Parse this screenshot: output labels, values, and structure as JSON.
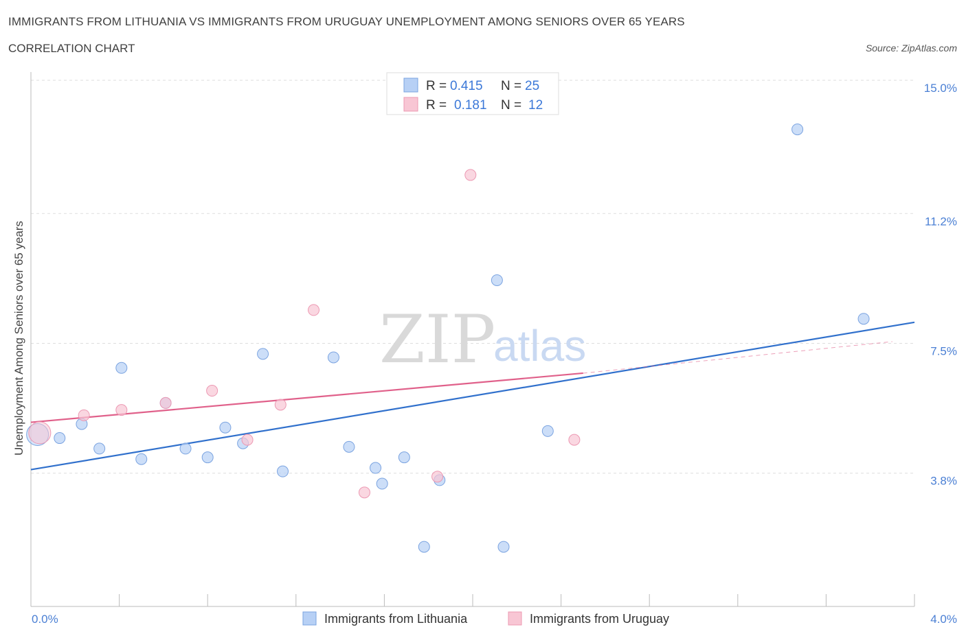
{
  "header": {
    "title": "IMMIGRANTS FROM LITHUANIA VS IMMIGRANTS FROM URUGUAY UNEMPLOYMENT AMONG SENIORS OVER 65 YEARS",
    "subtitle": "CORRELATION CHART",
    "source": "Source: ZipAtlas.com"
  },
  "watermark": {
    "zip": "ZIP",
    "atlas": "atlas"
  },
  "legend": {
    "r_label": "R =",
    "n_label": "N =",
    "rows": [
      {
        "r": "0.415",
        "n": "25"
      },
      {
        "r": "0.181",
        "n": "12"
      }
    ]
  },
  "colors": {
    "lithuania_fill": "#b7d0f5",
    "lithuania_stroke": "#7aa3e0",
    "lithuania_line": "#3070cc",
    "uruguay_fill": "#f8c6d4",
    "uruguay_stroke": "#ec98b2",
    "uruguay_line": "#e0608a"
  },
  "chart_data": {
    "type": "scatter",
    "title": "IMMIGRANTS FROM LITHUANIA VS IMMIGRANTS FROM URUGUAY UNEMPLOYMENT AMONG SENIORS OVER 65 YEARS",
    "xlabel": "",
    "ylabel": "Unemployment Among Seniors over 65 years",
    "xlim": [
      0,
      4.0
    ],
    "ylim": [
      0,
      15.0
    ],
    "x_tick_labels": [
      "0.0%",
      "4.0%"
    ],
    "y_ticks": [
      3.8,
      7.5,
      11.2,
      15.0
    ],
    "y_tick_labels": [
      "3.8%",
      "7.5%",
      "11.2%",
      "15.0%"
    ],
    "grid": true,
    "legend_position": "top-center",
    "series": [
      {
        "name": "Immigrants from Lithuania",
        "points": [
          {
            "x": 0.03,
            "y": 4.9,
            "big": true
          },
          {
            "x": 0.13,
            "y": 4.8
          },
          {
            "x": 0.23,
            "y": 5.2
          },
          {
            "x": 0.31,
            "y": 4.5
          },
          {
            "x": 0.41,
            "y": 6.8
          },
          {
            "x": 0.5,
            "y": 4.2
          },
          {
            "x": 0.61,
            "y": 5.8
          },
          {
            "x": 0.7,
            "y": 4.5
          },
          {
            "x": 0.8,
            "y": 4.25
          },
          {
            "x": 0.88,
            "y": 5.1
          },
          {
            "x": 0.96,
            "y": 4.65
          },
          {
            "x": 1.05,
            "y": 7.2
          },
          {
            "x": 1.14,
            "y": 3.85
          },
          {
            "x": 1.37,
            "y": 7.1
          },
          {
            "x": 1.44,
            "y": 4.55
          },
          {
            "x": 1.56,
            "y": 3.95
          },
          {
            "x": 1.59,
            "y": 3.5
          },
          {
            "x": 1.69,
            "y": 4.25
          },
          {
            "x": 1.78,
            "y": 1.7
          },
          {
            "x": 1.85,
            "y": 3.6
          },
          {
            "x": 2.11,
            "y": 9.3
          },
          {
            "x": 2.14,
            "y": 1.7
          },
          {
            "x": 2.34,
            "y": 5.0
          },
          {
            "x": 3.47,
            "y": 13.6
          },
          {
            "x": 3.77,
            "y": 8.2
          }
        ],
        "trend": {
          "x0": 0.0,
          "y0": 3.9,
          "x1": 4.0,
          "y1": 8.1
        }
      },
      {
        "name": "Immigrants from Uruguay",
        "points": [
          {
            "x": 0.04,
            "y": 4.95,
            "big": true
          },
          {
            "x": 0.24,
            "y": 5.45
          },
          {
            "x": 0.41,
            "y": 5.6
          },
          {
            "x": 0.61,
            "y": 5.8
          },
          {
            "x": 0.82,
            "y": 6.15
          },
          {
            "x": 0.98,
            "y": 4.75
          },
          {
            "x": 1.13,
            "y": 5.75
          },
          {
            "x": 1.28,
            "y": 8.45
          },
          {
            "x": 1.51,
            "y": 3.25
          },
          {
            "x": 1.84,
            "y": 3.7
          },
          {
            "x": 1.99,
            "y": 12.3
          },
          {
            "x": 2.46,
            "y": 4.75
          }
        ],
        "trend": {
          "x0": 0.0,
          "y0": 5.25,
          "x1": 2.5,
          "y1": 6.65
        },
        "trend_extension": {
          "x0": 2.5,
          "y0": 6.65,
          "x1": 3.9,
          "y1": 7.55
        }
      }
    ]
  },
  "bottom_legend": [
    {
      "label": "Immigrants from Lithuania"
    },
    {
      "label": "Immigrants from Uruguay"
    }
  ]
}
